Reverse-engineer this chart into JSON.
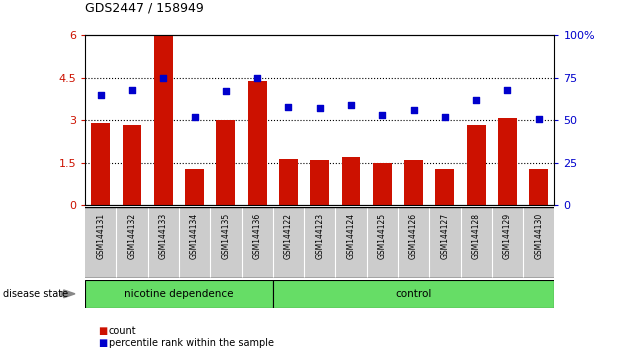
{
  "title": "GDS2447 / 158949",
  "categories": [
    "GSM144131",
    "GSM144132",
    "GSM144133",
    "GSM144134",
    "GSM144135",
    "GSM144136",
    "GSM144122",
    "GSM144123",
    "GSM144124",
    "GSM144125",
    "GSM144126",
    "GSM144127",
    "GSM144128",
    "GSM144129",
    "GSM144130"
  ],
  "bar_values": [
    2.9,
    2.85,
    6.0,
    1.3,
    3.0,
    4.4,
    1.65,
    1.6,
    1.7,
    1.5,
    1.6,
    1.3,
    2.85,
    3.1,
    1.3
  ],
  "percentile_values": [
    65,
    68,
    75,
    52,
    67,
    75,
    58,
    57,
    59,
    53,
    56,
    52,
    62,
    68,
    51
  ],
  "bar_color": "#cc1100",
  "percentile_color": "#0000cc",
  "ylim_left": [
    0,
    6
  ],
  "ylim_right": [
    0,
    100
  ],
  "yticks_left": [
    0,
    1.5,
    3.0,
    4.5,
    6.0
  ],
  "ytick_labels_left": [
    "0",
    "1.5",
    "3",
    "4.5",
    "6"
  ],
  "yticks_right": [
    0,
    25,
    50,
    75,
    100
  ],
  "ytick_labels_right": [
    "0",
    "25",
    "50",
    "75",
    "100%"
  ],
  "group1_label": "nicotine dependence",
  "group2_label": "control",
  "group1_count": 6,
  "group2_count": 9,
  "disease_state_label": "disease state",
  "legend_bar_label": "count",
  "legend_pct_label": "percentile rank within the sample",
  "group_bar_color": "#66dd66",
  "tick_label_bg": "#cccccc",
  "dotted_grid_values": [
    1.5,
    3.0,
    4.5
  ],
  "figwidth": 6.3,
  "figheight": 3.54,
  "dpi": 100
}
